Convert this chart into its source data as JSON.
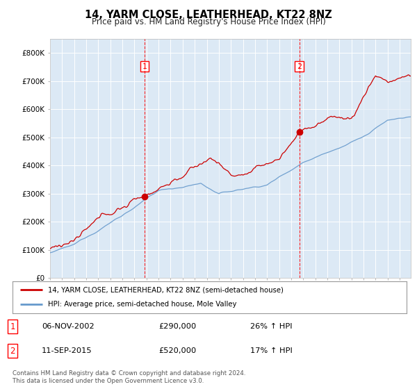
{
  "title": "14, YARM CLOSE, LEATHERHEAD, KT22 8NZ",
  "subtitle": "Price paid vs. HM Land Registry's House Price Index (HPI)",
  "background_color": "#ffffff",
  "plot_bg_color": "#dce9f5",
  "hpi_color": "#6699cc",
  "price_color": "#cc0000",
  "legend_entry1": "14, YARM CLOSE, LEATHERHEAD, KT22 8NZ (semi-detached house)",
  "legend_entry2": "HPI: Average price, semi-detached house, Mole Valley",
  "table_rows": [
    {
      "num": "1",
      "date": "06-NOV-2002",
      "price": "£290,000",
      "change": "26% ↑ HPI"
    },
    {
      "num": "2",
      "date": "11-SEP-2015",
      "price": "£520,000",
      "change": "17% ↑ HPI"
    }
  ],
  "footer": "Contains HM Land Registry data © Crown copyright and database right 2024.\nThis data is licensed under the Open Government Licence v3.0.",
  "ylim": [
    0,
    850000
  ],
  "yticks": [
    0,
    100000,
    200000,
    300000,
    400000,
    500000,
    600000,
    700000,
    800000
  ],
  "ytick_labels": [
    "£0",
    "£100K",
    "£200K",
    "£300K",
    "£400K",
    "£500K",
    "£600K",
    "£700K",
    "£800K"
  ],
  "marker1_price": 290000,
  "marker2_price": 520000,
  "marker1_year": 2002.85,
  "marker2_year": 2015.7,
  "start_year": 1995,
  "end_year": 2025
}
